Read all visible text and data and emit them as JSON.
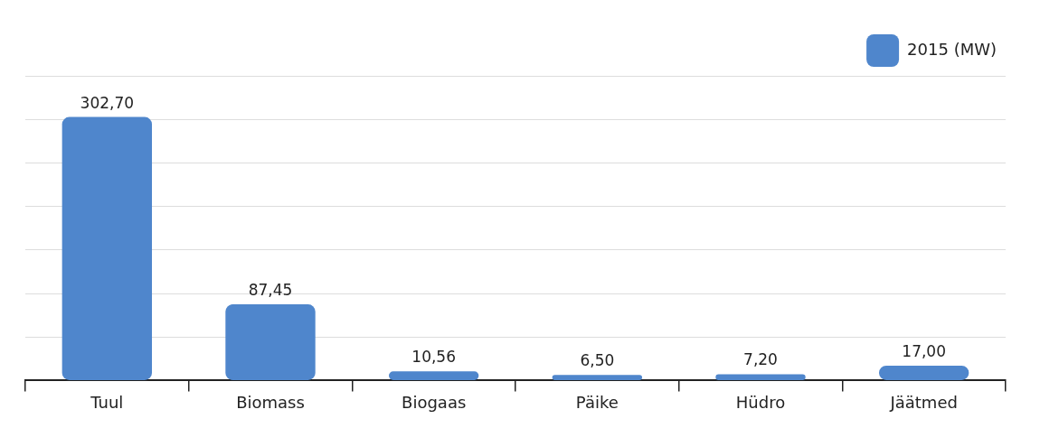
{
  "chart_data": {
    "type": "bar",
    "categories": [
      "Tuul",
      "Biomass",
      "Biogaas",
      "Päike",
      "Hüdro",
      "Jäätmed"
    ],
    "series": [
      {
        "name": "2015 (MW)",
        "color": "#4f86cc",
        "values": [
          302.7,
          87.45,
          10.56,
          6.5,
          7.2,
          17.0
        ],
        "value_labels": [
          "302,70",
          "87,45",
          "10,56",
          "6,50",
          "7,20",
          "17,00"
        ]
      }
    ],
    "grid": "y",
    "legend": "top right",
    "tick_labels": "x"
  }
}
